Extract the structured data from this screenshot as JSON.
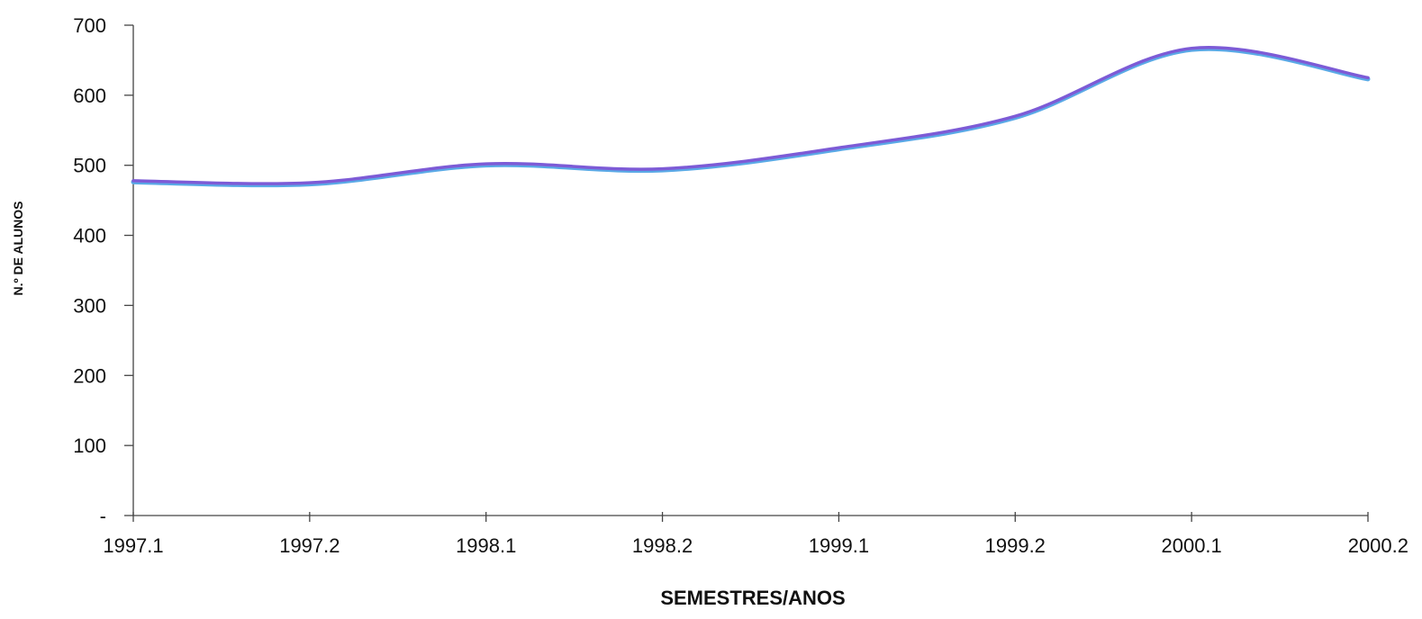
{
  "chart_data": {
    "type": "line",
    "title": "",
    "xlabel": "SEMESTRES/ANOS",
    "ylabel": "N.º DE ALUNOS",
    "categories": [
      "1997.1",
      "1997.2",
      "1998.1",
      "1998.2",
      "1999.1",
      "1999.2",
      "2000.1",
      "2000.2"
    ],
    "y_tick_labels": [
      "-",
      "100",
      "200",
      "300",
      "400",
      "500",
      "600",
      "700"
    ],
    "ylim": [
      0,
      700
    ],
    "grid": false,
    "legend": "none",
    "series": [
      {
        "x": [
          "1997.1",
          "1997.2",
          "1998.1",
          "1998.2",
          "1999.1",
          "1999.2",
          "2000.1",
          "2000.2"
        ],
        "values": [
          478,
          475,
          502,
          495,
          525,
          570,
          667,
          625
        ],
        "color": "#7d5bd6"
      }
    ]
  }
}
